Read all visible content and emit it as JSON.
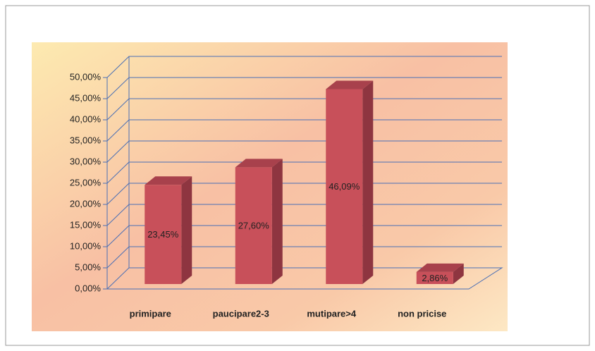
{
  "chart_data": {
    "type": "bar3d",
    "categories": [
      "primipare",
      "paucipare2-3",
      "mutipare>4",
      "non pricise"
    ],
    "values": [
      23.45,
      27.6,
      46.09,
      2.86
    ],
    "value_labels": [
      "23,45%",
      "27,60%",
      "46,09%",
      "2,86%"
    ],
    "color": "#c8505a",
    "ylim": [
      0,
      50
    ],
    "yticks": [
      {
        "value": 0,
        "label": "0,00%"
      },
      {
        "value": 5,
        "label": "5,00%"
      },
      {
        "value": 10,
        "label": "10,00%"
      },
      {
        "value": 15,
        "label": "15,00%"
      },
      {
        "value": 20,
        "label": "20,00%"
      },
      {
        "value": 25,
        "label": "25,00%"
      },
      {
        "value": 30,
        "label": "30,00%"
      },
      {
        "value": 35,
        "label": "35,00%"
      },
      {
        "value": 40,
        "label": "40,00%"
      },
      {
        "value": 45,
        "label": "45,00%"
      },
      {
        "value": 50,
        "label": "50,00%"
      }
    ],
    "grid": true
  }
}
